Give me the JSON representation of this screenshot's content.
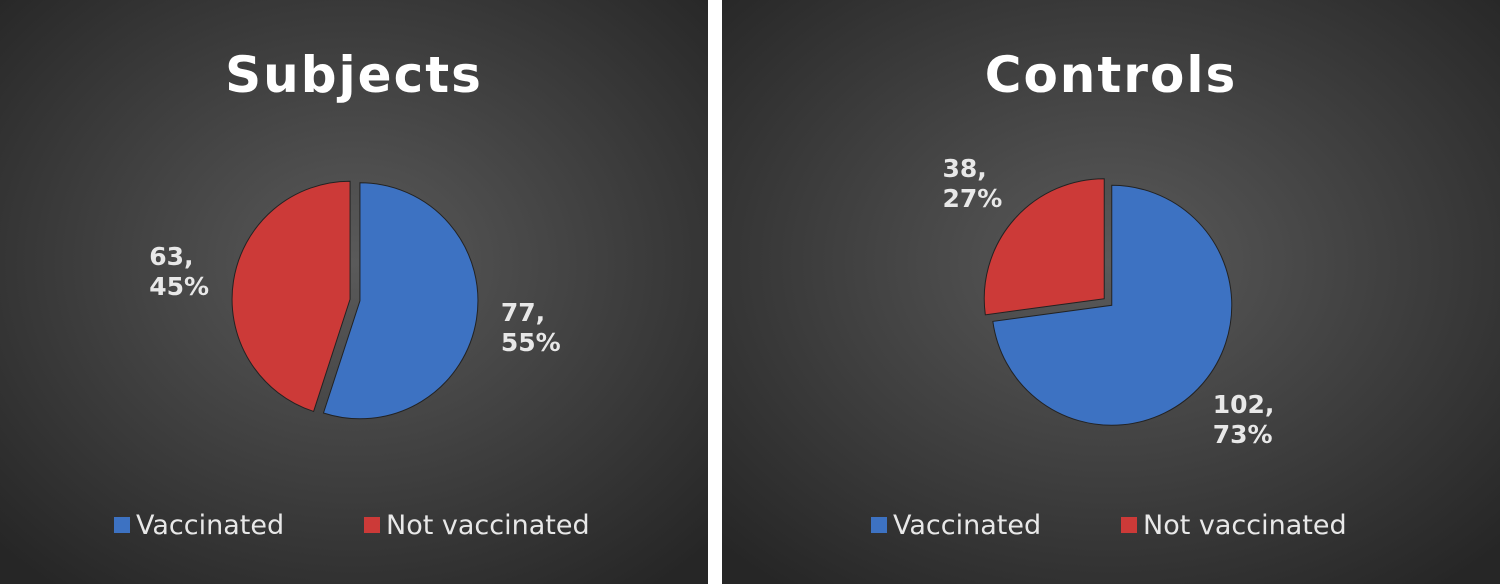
{
  "chart_data": [
    {
      "type": "pie",
      "title": "Subjects",
      "categories": [
        "Vaccinated",
        "Not vaccinated"
      ],
      "values": [
        77,
        63
      ],
      "value_labels": [
        "77,\n55%",
        "63,\n45%"
      ],
      "colors": [
        "#3d72c2",
        "#cc3a38"
      ]
    },
    {
      "type": "pie",
      "title": "Controls",
      "categories": [
        "Vaccinated",
        "Not vaccinated"
      ],
      "values": [
        102,
        38
      ],
      "value_labels": [
        "102,\n73%",
        "38,\n27%"
      ],
      "colors": [
        "#3d72c2",
        "#cc3a38"
      ]
    }
  ]
}
